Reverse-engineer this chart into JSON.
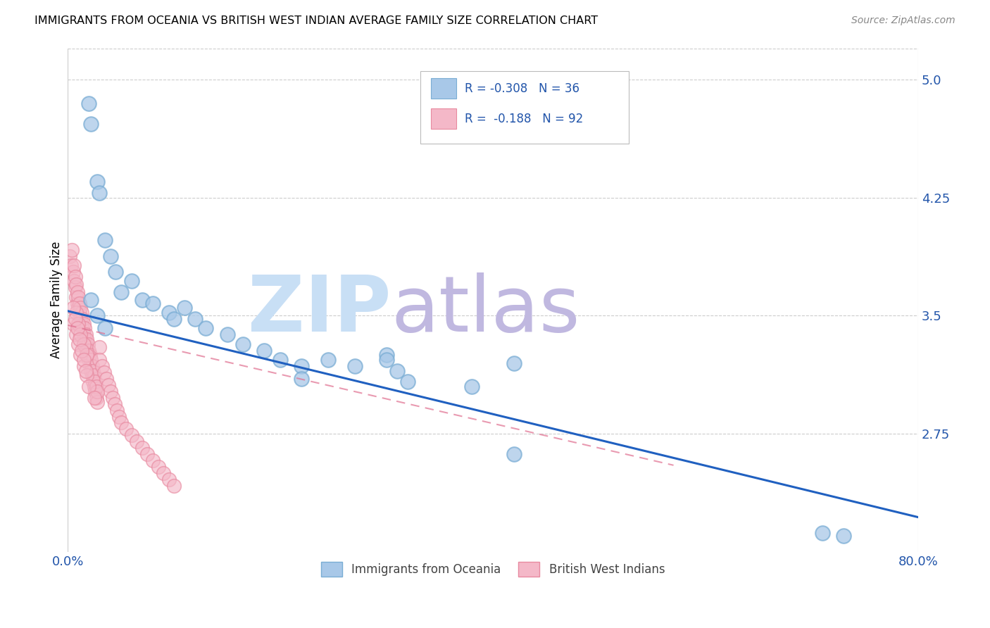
{
  "title": "IMMIGRANTS FROM OCEANIA VS BRITISH WEST INDIAN AVERAGE FAMILY SIZE CORRELATION CHART",
  "source": "Source: ZipAtlas.com",
  "ylabel": "Average Family Size",
  "yticks": [
    2.75,
    3.5,
    4.25,
    5.0
  ],
  "xlim": [
    0.0,
    0.8
  ],
  "ylim": [
    2.0,
    5.2
  ],
  "blue_color": "#a8c8e8",
  "blue_edge": "#7aadd4",
  "pink_color": "#f4b8c8",
  "pink_edge": "#e88aa0",
  "trend_blue": "#2060c0",
  "trend_pink": "#e07090",
  "watermark": "ZIPatlas",
  "watermark_blue": "#c8dff5",
  "watermark_atlas": "#c0b8e0",
  "blue_scatter_x": [
    0.02,
    0.022,
    0.028,
    0.03,
    0.035,
    0.04,
    0.045,
    0.05,
    0.06,
    0.07,
    0.08,
    0.095,
    0.1,
    0.11,
    0.12,
    0.13,
    0.15,
    0.165,
    0.185,
    0.2,
    0.22,
    0.245,
    0.27,
    0.3,
    0.31,
    0.32,
    0.38,
    0.42,
    0.71,
    0.73,
    0.022,
    0.028,
    0.035,
    0.22,
    0.3,
    0.42
  ],
  "blue_scatter_y": [
    4.85,
    4.72,
    4.35,
    4.28,
    3.98,
    3.88,
    3.78,
    3.65,
    3.72,
    3.6,
    3.58,
    3.52,
    3.48,
    3.55,
    3.48,
    3.42,
    3.38,
    3.32,
    3.28,
    3.22,
    3.18,
    3.22,
    3.18,
    3.25,
    3.15,
    3.08,
    3.05,
    3.2,
    2.12,
    2.1,
    3.6,
    3.5,
    3.42,
    3.1,
    3.22,
    2.62
  ],
  "pink_scatter_x": [
    0.002,
    0.003,
    0.004,
    0.005,
    0.006,
    0.006,
    0.007,
    0.007,
    0.008,
    0.008,
    0.009,
    0.009,
    0.01,
    0.01,
    0.011,
    0.011,
    0.012,
    0.012,
    0.013,
    0.013,
    0.014,
    0.014,
    0.015,
    0.015,
    0.016,
    0.016,
    0.017,
    0.017,
    0.018,
    0.018,
    0.019,
    0.019,
    0.02,
    0.02,
    0.021,
    0.021,
    0.022,
    0.022,
    0.023,
    0.023,
    0.024,
    0.024,
    0.025,
    0.025,
    0.026,
    0.026,
    0.027,
    0.027,
    0.028,
    0.028,
    0.03,
    0.03,
    0.032,
    0.034,
    0.036,
    0.038,
    0.04,
    0.042,
    0.044,
    0.046,
    0.048,
    0.05,
    0.055,
    0.06,
    0.065,
    0.07,
    0.075,
    0.08,
    0.085,
    0.09,
    0.095,
    0.1,
    0.005,
    0.008,
    0.01,
    0.012,
    0.015,
    0.018,
    0.02,
    0.025,
    0.008,
    0.01,
    0.012,
    0.015,
    0.018,
    0.005,
    0.007,
    0.009,
    0.011,
    0.013,
    0.015,
    0.017
  ],
  "pink_scatter_y": [
    3.88,
    3.82,
    3.92,
    3.78,
    3.72,
    3.82,
    3.68,
    3.75,
    3.62,
    3.7,
    3.58,
    3.65,
    3.55,
    3.62,
    3.52,
    3.58,
    3.48,
    3.55,
    3.45,
    3.52,
    3.42,
    3.48,
    3.38,
    3.45,
    3.35,
    3.42,
    3.32,
    3.38,
    3.28,
    3.35,
    3.25,
    3.32,
    3.22,
    3.28,
    3.18,
    3.25,
    3.15,
    3.22,
    3.12,
    3.18,
    3.08,
    3.15,
    3.05,
    3.12,
    3.02,
    3.08,
    2.98,
    3.05,
    2.95,
    3.02,
    3.3,
    3.22,
    3.18,
    3.14,
    3.1,
    3.06,
    3.02,
    2.98,
    2.94,
    2.9,
    2.86,
    2.82,
    2.78,
    2.74,
    2.7,
    2.66,
    2.62,
    2.58,
    2.54,
    2.5,
    2.46,
    2.42,
    3.45,
    3.38,
    3.32,
    3.25,
    3.18,
    3.12,
    3.05,
    2.98,
    3.52,
    3.45,
    3.38,
    3.32,
    3.25,
    3.55,
    3.48,
    3.42,
    3.35,
    3.28,
    3.22,
    3.15
  ]
}
